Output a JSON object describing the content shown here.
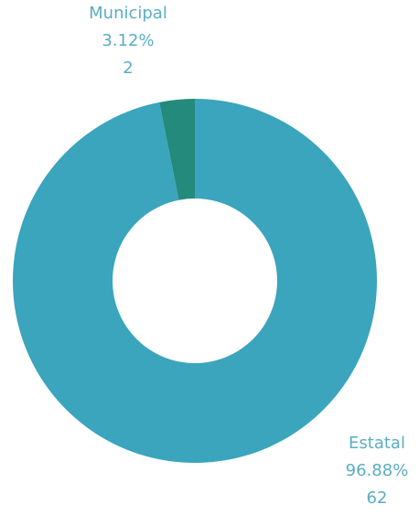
{
  "chart_data": {
    "type": "pie",
    "variant": "donut",
    "slices": [
      {
        "label": "Estatal",
        "percent_text": "96.88%",
        "value": 62,
        "color": "#3aa5bd"
      },
      {
        "label": "Municipal",
        "percent_text": "3.12%",
        "value": 2,
        "color": "#248a7b"
      }
    ],
    "label_color": "#5aaec3",
    "legend": "none",
    "grid": false
  }
}
